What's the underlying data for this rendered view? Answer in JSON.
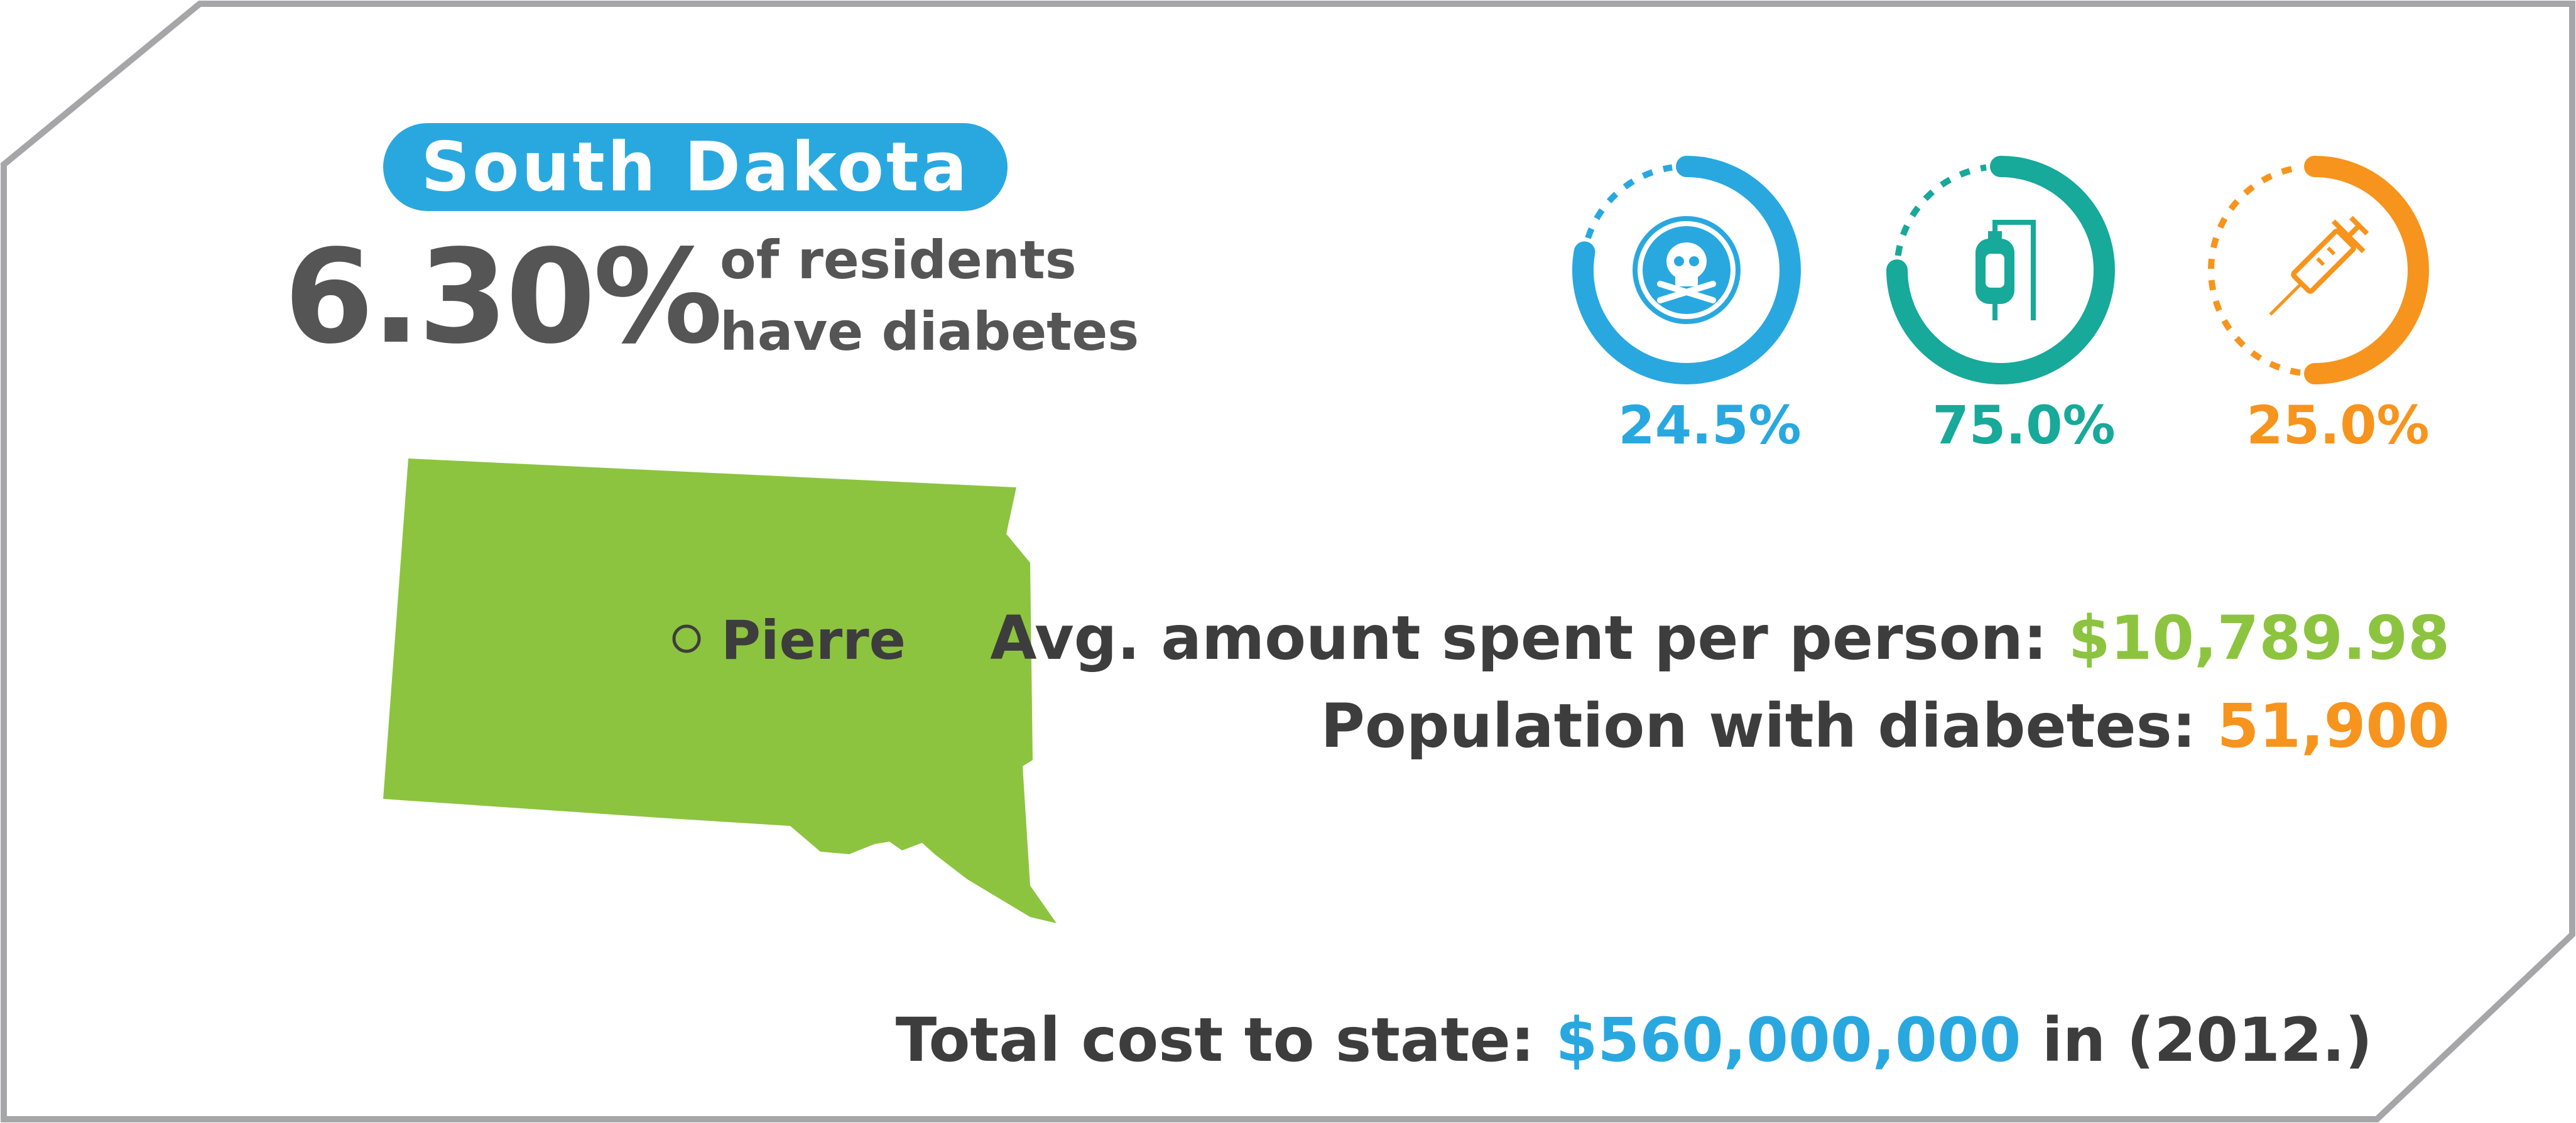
{
  "state": "South Dakota",
  "diabetes_rate": "6.30%",
  "rate_text_line1": "of residents",
  "rate_text_line2": "have diabetes",
  "capital": "Pierre",
  "gauges": [
    {
      "icon": "skull-crossbones-icon",
      "value": 24.5,
      "label": "24.5%",
      "color": "#29a8e0"
    },
    {
      "icon": "iv-bag-icon",
      "value": 75.0,
      "label": "75.0%",
      "color": "#17a99a"
    },
    {
      "icon": "syringe-icon",
      "value": 25.0,
      "label": "25.0%",
      "color": "#f7941d"
    }
  ],
  "avg_spent_label": "Avg. amount spent per person:",
  "avg_spent_value": "$10,789.98",
  "population_label": "Population with diabetes:",
  "population_value": "51,900",
  "total_cost_label": "Total cost to state:",
  "total_cost_value": "$560,000,000",
  "total_cost_suffix": "in (2012.)",
  "colors": {
    "blue": "#29a8e0",
    "teal": "#17a99a",
    "orange": "#f7941d",
    "green": "#8cc43f",
    "text": "#3d3d3d",
    "frame": "#a6a6a8"
  }
}
